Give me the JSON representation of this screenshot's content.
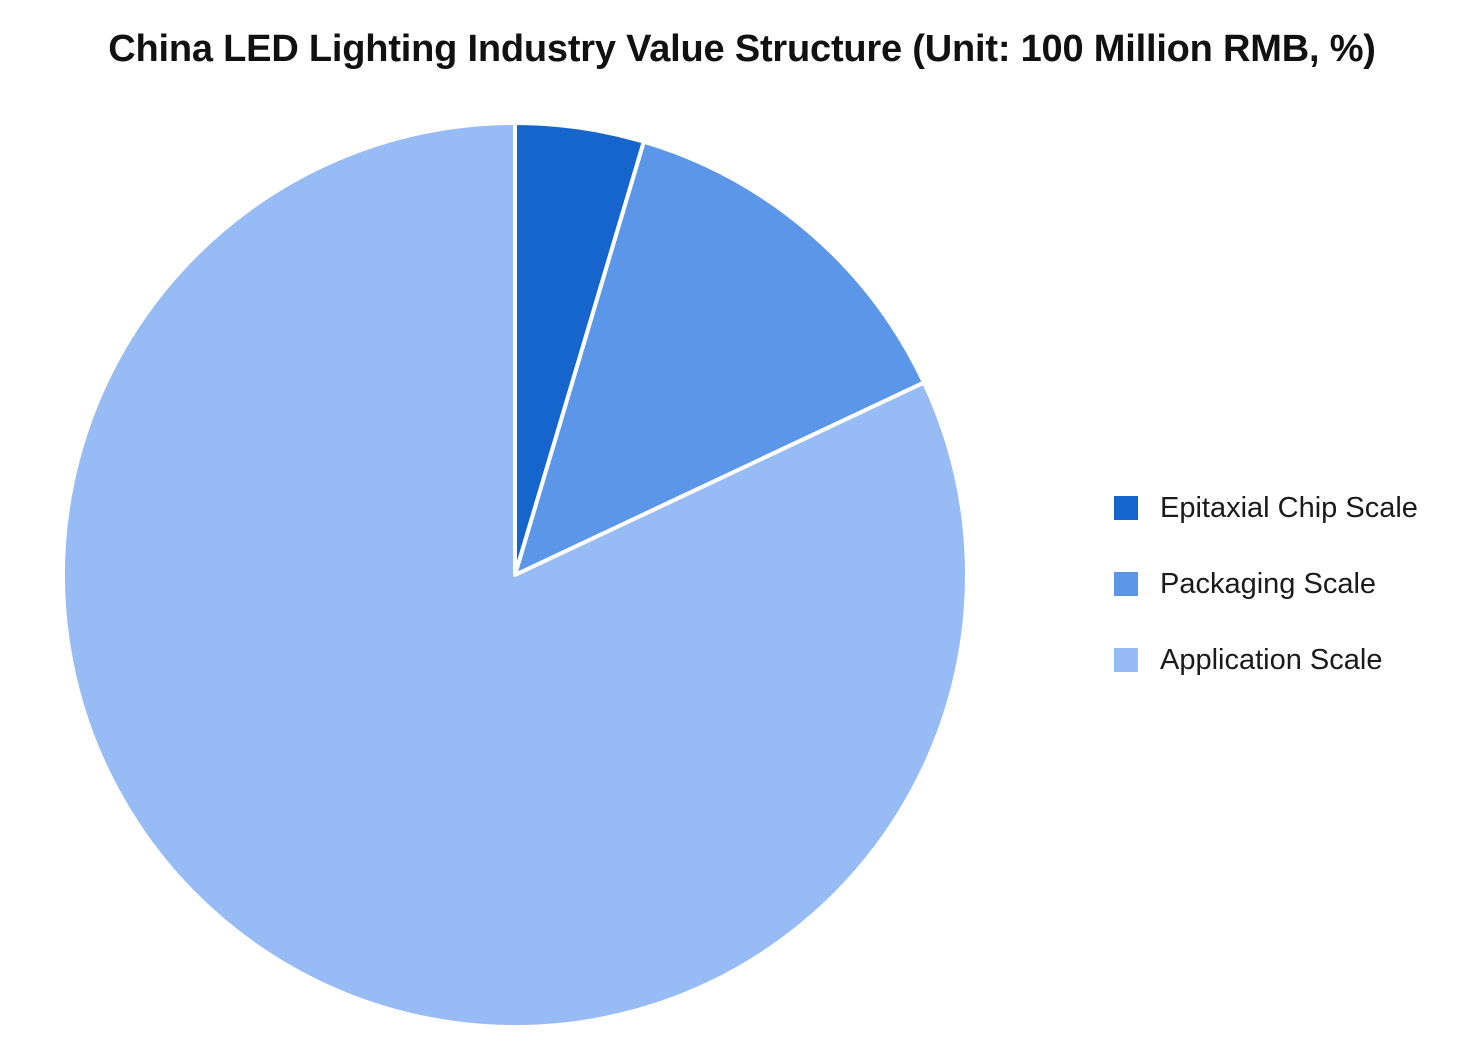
{
  "chart_data": {
    "type": "pie",
    "title": "China LED Lighting Industry Value Structure (Unit: 100 Million RMB, %)",
    "categories": [
      "Epitaxial Chip Scale",
      "Packaging Scale",
      "Application Scale"
    ],
    "values": [
      4.6,
      13.4,
      82.0
    ],
    "colors": [
      "#1565cc",
      "#5b96e8",
      "#97bbf5"
    ],
    "start_angle_deg": 0,
    "direction": "clockwise",
    "slice_border_color": "#ffffff",
    "legend": {
      "placement": "right",
      "entries": [
        "Epitaxial Chip Scale",
        "Packaging Scale",
        "Application Scale"
      ]
    }
  }
}
